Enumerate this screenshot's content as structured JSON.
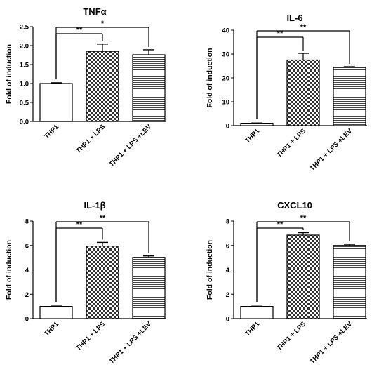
{
  "chart_data": [
    {
      "type": "bar",
      "title": "TNFα",
      "ylabel": "Fold of induction",
      "categories": [
        "THP1",
        "THP1 + LPS",
        "THP1 + LPS +LEV"
      ],
      "values": [
        1.0,
        1.85,
        1.76
      ],
      "errors": [
        0.02,
        0.19,
        0.13
      ],
      "ylim": [
        0,
        2.5
      ],
      "yticks": [
        "0.0",
        "0.5",
        "1.0",
        "1.5",
        "2.0",
        "2.5"
      ],
      "significance": [
        {
          "from": 0,
          "to": 1,
          "label": "**"
        },
        {
          "from": 0,
          "to": 2,
          "label": "*"
        }
      ]
    },
    {
      "type": "bar",
      "title": "IL-6",
      "ylabel": "Fold of induction",
      "categories": [
        "THP1",
        "THP1 + LPS",
        "THP1 + LPS +LEV"
      ],
      "values": [
        1.0,
        27.5,
        24.5
      ],
      "errors": [
        0.1,
        2.8,
        0.2
      ],
      "ylim": [
        0,
        40
      ],
      "yticks": [
        "0",
        "10",
        "20",
        "30",
        "40"
      ],
      "significance": [
        {
          "from": 0,
          "to": 1,
          "label": "**"
        },
        {
          "from": 0,
          "to": 2,
          "label": "**"
        }
      ]
    },
    {
      "type": "bar",
      "title": "IL-1β",
      "ylabel": "Fold of induction",
      "categories": [
        "THP1",
        "THP1 + LPS",
        "THP1 + LPS +LEV"
      ],
      "values": [
        1.0,
        5.95,
        5.02
      ],
      "errors": [
        0.03,
        0.3,
        0.12
      ],
      "ylim": [
        0,
        8
      ],
      "yticks": [
        "0",
        "2",
        "4",
        "6",
        "8"
      ],
      "significance": [
        {
          "from": 0,
          "to": 1,
          "label": "**"
        },
        {
          "from": 0,
          "to": 2,
          "label": "**"
        }
      ]
    },
    {
      "type": "bar",
      "title": "CXCL10",
      "ylabel": "Fold of induction",
      "categories": [
        "THP1",
        "THP1 + LPS",
        "THP1 + LPS +LEV"
      ],
      "values": [
        1.0,
        6.85,
        6.0
      ],
      "errors": [
        0.02,
        0.2,
        0.1
      ],
      "ylim": [
        0,
        8
      ],
      "yticks": [
        "0",
        "2",
        "4",
        "6",
        "8"
      ],
      "significance": [
        {
          "from": 0,
          "to": 1,
          "label": "**"
        },
        {
          "from": 0,
          "to": 2,
          "label": "**"
        }
      ]
    }
  ]
}
